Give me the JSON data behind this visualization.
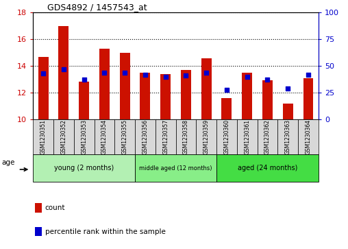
{
  "title": "GDS4892 / 1457543_at",
  "samples": [
    "GSM1230351",
    "GSM1230352",
    "GSM1230353",
    "GSM1230354",
    "GSM1230355",
    "GSM1230356",
    "GSM1230357",
    "GSM1230358",
    "GSM1230359",
    "GSM1230360",
    "GSM1230361",
    "GSM1230362",
    "GSM1230363",
    "GSM1230364"
  ],
  "counts": [
    14.7,
    17.0,
    12.85,
    15.3,
    15.0,
    13.5,
    13.4,
    13.7,
    14.55,
    11.6,
    13.5,
    12.95,
    11.2,
    13.1
  ],
  "percentiles": [
    43,
    47,
    37,
    44,
    44,
    42,
    40,
    41,
    44,
    28,
    40,
    37,
    29,
    42
  ],
  "ylim_left": [
    10,
    18
  ],
  "ylim_right": [
    0,
    100
  ],
  "yticks_left": [
    10,
    12,
    14,
    16,
    18
  ],
  "yticks_right": [
    0,
    25,
    50,
    75,
    100
  ],
  "bar_color": "#cc1100",
  "dot_color": "#0000cc",
  "bar_width": 0.5,
  "groups": [
    {
      "label": "young (2 months)",
      "start": 0,
      "end": 5
    },
    {
      "label": "middle aged (12 months)",
      "start": 5,
      "end": 9
    },
    {
      "label": "aged (24 months)",
      "start": 9,
      "end": 14
    }
  ],
  "green_shades": [
    "#b3f0b3",
    "#88ee88",
    "#44dd44"
  ],
  "tick_color_left": "#cc0000",
  "tick_color_right": "#0000cc",
  "legend_count_color": "#cc1100",
  "legend_dot_color": "#0000cc",
  "background_color": "#ffffff",
  "plot_bg_color": "#ffffff",
  "base_value": 10,
  "age_label": "age",
  "legend_count_label": "count",
  "legend_pct_label": "percentile rank within the sample"
}
